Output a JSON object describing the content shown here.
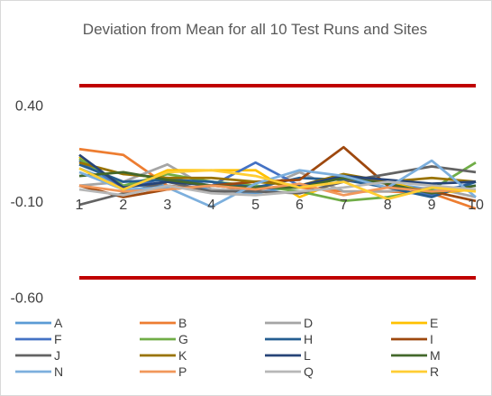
{
  "chart_data": {
    "type": "line",
    "title": "Deviation from Mean for all 10 Test Runs and Sites",
    "xlabel": "",
    "ylabel": "",
    "x": [
      1,
      2,
      3,
      4,
      5,
      6,
      7,
      8,
      9,
      10
    ],
    "x_tick_labels": [
      "1",
      "2",
      "3",
      "4",
      "5",
      "6",
      "7",
      "8",
      "9",
      "10"
    ],
    "ylim": [
      -0.6,
      0.65
    ],
    "y_ticks": [
      0.4,
      -0.1,
      -0.6
    ],
    "y_tick_labels": [
      "0.40",
      "-0.10",
      "-0.60"
    ],
    "grid": false,
    "legend_position": "bottom",
    "limit_lines": [
      {
        "value": 0.5,
        "color": "#C00000"
      },
      {
        "value": -0.5,
        "color": "#C00000"
      }
    ],
    "series": [
      {
        "name": "A",
        "color": "#5B9BD5",
        "values": [
          0.07,
          -0.02,
          -0.02,
          -0.04,
          -0.06,
          -0.02,
          0.03,
          -0.01,
          -0.04,
          -0.02
        ]
      },
      {
        "name": "B",
        "color": "#ED7D31",
        "values": [
          0.17,
          0.14,
          -0.02,
          -0.05,
          -0.03,
          -0.03,
          -0.05,
          -0.05,
          -0.06,
          -0.14
        ]
      },
      {
        "name": "D",
        "color": "#A5A5A5",
        "values": [
          -0.02,
          0.0,
          0.09,
          -0.04,
          -0.05,
          0.05,
          -0.05,
          -0.05,
          -0.03,
          -0.08
        ]
      },
      {
        "name": "E",
        "color": "#FFC000",
        "values": [
          0.13,
          -0.04,
          0.06,
          0.06,
          0.06,
          -0.08,
          0.01,
          0.0,
          -0.06,
          -0.04
        ]
      },
      {
        "name": "F",
        "color": "#4472C4",
        "values": [
          0.11,
          -0.03,
          0.02,
          -0.02,
          0.1,
          -0.02,
          0.03,
          -0.01,
          -0.07,
          0.0
        ]
      },
      {
        "name": "G",
        "color": "#70AD47",
        "values": [
          0.12,
          -0.02,
          0.04,
          0.0,
          -0.02,
          -0.05,
          -0.1,
          -0.08,
          -0.04,
          0.1
        ]
      },
      {
        "name": "H",
        "color": "#255E91",
        "values": [
          0.09,
          0.0,
          0.01,
          0.0,
          -0.03,
          0.02,
          0.01,
          -0.03,
          -0.08,
          0.0
        ]
      },
      {
        "name": "I",
        "color": "#9E480E",
        "values": [
          -0.02,
          -0.08,
          -0.04,
          -0.02,
          0.0,
          0.01,
          0.18,
          -0.02,
          -0.05,
          -0.1
        ]
      },
      {
        "name": "J",
        "color": "#636363",
        "values": [
          -0.12,
          -0.06,
          0.0,
          -0.05,
          -0.05,
          -0.06,
          0.0,
          0.04,
          0.08,
          0.05
        ]
      },
      {
        "name": "K",
        "color": "#997300",
        "values": [
          0.1,
          0.04,
          0.02,
          0.02,
          0.0,
          -0.02,
          0.04,
          0.0,
          0.02,
          0.0
        ]
      },
      {
        "name": "L",
        "color": "#264478",
        "values": [
          0.14,
          -0.03,
          0.0,
          -0.02,
          -0.04,
          -0.02,
          0.03,
          0.01,
          -0.01,
          0.0
        ]
      },
      {
        "name": "M",
        "color": "#43682B",
        "values": [
          0.03,
          0.05,
          0.01,
          -0.02,
          -0.03,
          -0.03,
          0.02,
          -0.01,
          -0.06,
          -0.02
        ]
      },
      {
        "name": "N",
        "color": "#7CAFDD",
        "values": [
          0.05,
          -0.04,
          -0.03,
          -0.13,
          -0.01,
          0.06,
          0.03,
          -0.03,
          0.11,
          -0.08
        ]
      },
      {
        "name": "P",
        "color": "#F1975A",
        "values": [
          -0.02,
          -0.05,
          -0.04,
          -0.02,
          -0.04,
          -0.01,
          -0.07,
          -0.03,
          -0.05,
          -0.04
        ]
      },
      {
        "name": "Q",
        "color": "#B7B7B7",
        "values": [
          -0.04,
          -0.07,
          -0.02,
          -0.06,
          -0.07,
          -0.05,
          -0.03,
          0.0,
          -0.02,
          -0.04
        ]
      },
      {
        "name": "R",
        "color": "#FFCD33",
        "values": [
          0.07,
          -0.04,
          0.05,
          0.06,
          0.03,
          -0.03,
          0.0,
          -0.09,
          -0.03,
          -0.05
        ]
      }
    ]
  }
}
